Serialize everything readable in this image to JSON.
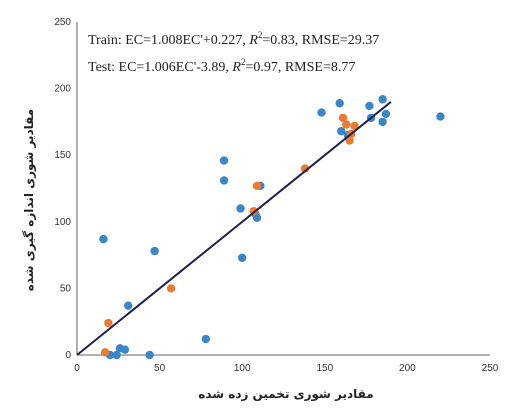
{
  "chart_data": {
    "type": "scatter",
    "xlabel": "مقادیر شوری تخمین زده شده",
    "ylabel": "مقادیر شوری اندازه گیری شده",
    "xlim": [
      0,
      250
    ],
    "ylim": [
      0,
      250
    ],
    "xticks": [
      "0",
      "50",
      "100",
      "150",
      "200",
      "250"
    ],
    "yticks": [
      "0",
      "50",
      "100",
      "150",
      "200",
      "250"
    ],
    "grid": false,
    "annotations": {
      "train_prefix": "Train: EC=1.008EC'+0.227, ",
      "train_r2": "R",
      "train_sup": "2",
      "train_suffix": "=0.83, RMSE=29.37",
      "test_prefix": "Test: EC=1.006EC'-3.89, ",
      "test_r2": "R",
      "test_sup": "2",
      "test_suffix": "=0.97, RMSE=8.77"
    },
    "series": [
      {
        "color": "#3b86c8",
        "points": [
          [
            16,
            87
          ],
          [
            20,
            0
          ],
          [
            24,
            0
          ],
          [
            26,
            5
          ],
          [
            29,
            4
          ],
          [
            31,
            37
          ],
          [
            44,
            0
          ],
          [
            47,
            78
          ],
          [
            78,
            12
          ],
          [
            89,
            146
          ],
          [
            89,
            131
          ],
          [
            99,
            110
          ],
          [
            100,
            73
          ],
          [
            108,
            106
          ],
          [
            109,
            103
          ],
          [
            111,
            127
          ],
          [
            148,
            182
          ],
          [
            159,
            189
          ],
          [
            160,
            168
          ],
          [
            164,
            165
          ],
          [
            177,
            187
          ],
          [
            178,
            178
          ],
          [
            185,
            192
          ],
          [
            185,
            175
          ],
          [
            187,
            181
          ],
          [
            220,
            179
          ]
        ]
      },
      {
        "color": "#ec7a30",
        "points": [
          [
            17,
            2
          ],
          [
            19,
            24
          ],
          [
            57,
            50
          ],
          [
            107,
            108
          ],
          [
            109,
            127
          ],
          [
            138,
            140
          ],
          [
            161,
            178
          ],
          [
            163,
            173
          ],
          [
            165,
            161
          ],
          [
            166,
            166
          ],
          [
            168,
            172
          ]
        ]
      }
    ],
    "fit_line": {
      "color": "#1f1f4e",
      "x": [
        0,
        190
      ],
      "y": [
        0,
        190
      ]
    }
  }
}
